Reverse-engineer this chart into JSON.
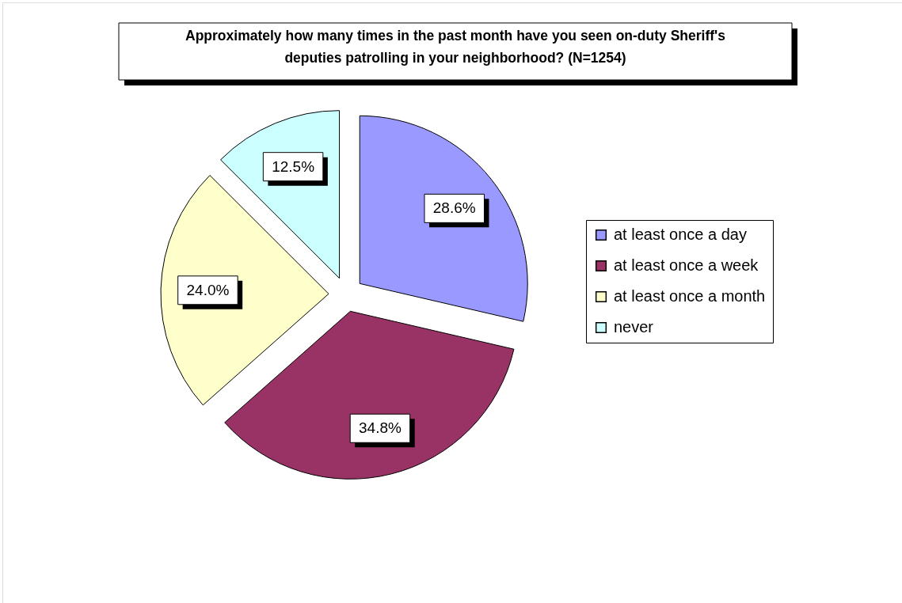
{
  "chart_data": {
    "type": "pie",
    "title": "Approximately how many times in the past month have you seen on-duty Sheriff's deputies patrolling in your neighborhood? (N=1254)",
    "categories": [
      "at least once a day",
      "at least once a week",
      "at least once a month",
      "never"
    ],
    "values": [
      28.6,
      34.8,
      24.0,
      12.5
    ],
    "value_labels": [
      "28.6%",
      "34.8%",
      "24.0%",
      "12.5%"
    ],
    "colors": [
      "#9999ff",
      "#993366",
      "#ffffcc",
      "#ccffff"
    ],
    "legend": "right"
  }
}
